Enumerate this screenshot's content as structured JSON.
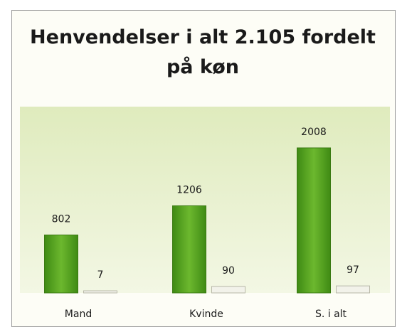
{
  "chart_data": {
    "type": "bar",
    "title": "Henvendelser i alt 2.105 fordelt på køn",
    "categories": [
      "Mand",
      "Kvinde",
      "S. i alt"
    ],
    "series": [
      {
        "color": "#4f9a1e",
        "values": [
          802,
          1206,
          2008
        ]
      },
      {
        "color": "#f2f2ea",
        "values": [
          7,
          90,
          97
        ]
      }
    ]
  }
}
